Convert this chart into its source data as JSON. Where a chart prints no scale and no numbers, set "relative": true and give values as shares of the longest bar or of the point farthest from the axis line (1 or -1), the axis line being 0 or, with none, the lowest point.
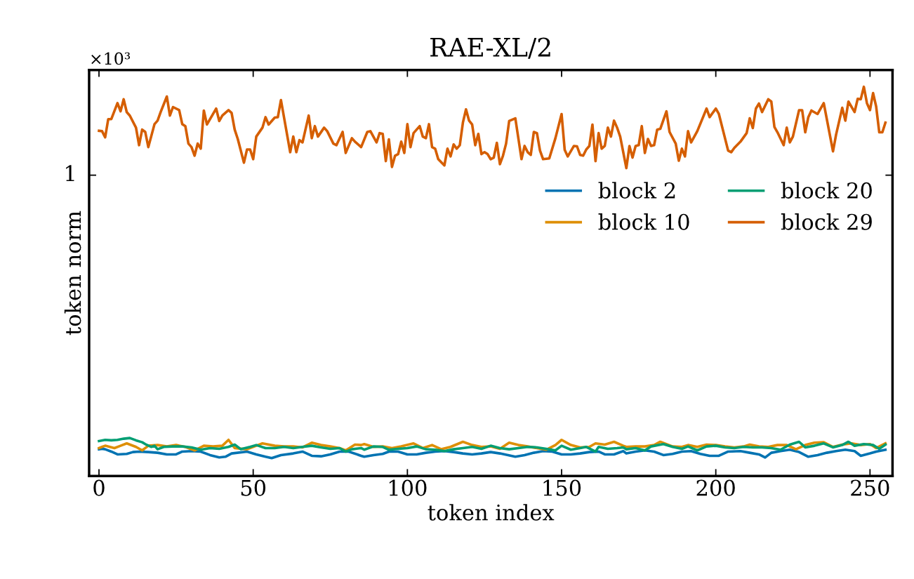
{
  "chart_data": {
    "type": "line",
    "title": "RAE-XL/2",
    "xlabel": "token index",
    "ylabel": "token norm",
    "relative": true,
    "annotations": [
      "×10³",
      "1"
    ],
    "xlim": [
      -3.2,
      257.3
    ],
    "xticks": [
      0,
      50,
      100,
      150,
      200,
      250
    ],
    "grid": false,
    "legend": "right",
    "line_style": "solid",
    "marker": "none",
    "series": [
      {
        "name": "block 2",
        "color": "#0173b2",
        "x": [
          0,
          1,
          2,
          4,
          6,
          9,
          11,
          13,
          16,
          19,
          22,
          25,
          27,
          30,
          33,
          36,
          39,
          41,
          43,
          48,
          51,
          54,
          56,
          59,
          63,
          66,
          69,
          72,
          75,
          78,
          81,
          85,
          86,
          89,
          92,
          94,
          97,
          100,
          103,
          106,
          109,
          112,
          115,
          118,
          121,
          124,
          127,
          130,
          135,
          138,
          141,
          144,
          147,
          150,
          153,
          156,
          159,
          162,
          164,
          167,
          170,
          171,
          174,
          177,
          180,
          183,
          186,
          189,
          192,
          195,
          198,
          201,
          204,
          208,
          211,
          214,
          216,
          218,
          221,
          224,
          227,
          230,
          233,
          236,
          239,
          242,
          245,
          247,
          250,
          252,
          255
        ],
        "values": [
          0.0686,
          0.0698,
          0.0686,
          0.0626,
          0.0554,
          0.0566,
          0.0614,
          0.0626,
          0.0614,
          0.0596,
          0.0554,
          0.0554,
          0.0626,
          0.0638,
          0.0626,
          0.0536,
          0.0475,
          0.0493,
          0.0578,
          0.0626,
          0.0554,
          0.0493,
          0.0457,
          0.0536,
          0.0578,
          0.0626,
          0.0517,
          0.0505,
          0.0554,
          0.0626,
          0.0626,
          0.0517,
          0.0493,
          0.0536,
          0.0566,
          0.0626,
          0.0626,
          0.0554,
          0.0554,
          0.0596,
          0.0626,
          0.0638,
          0.0614,
          0.0578,
          0.0554,
          0.0578,
          0.0614,
          0.0578,
          0.0493,
          0.0536,
          0.0596,
          0.0638,
          0.0626,
          0.0554,
          0.0554,
          0.0578,
          0.0614,
          0.0626,
          0.0554,
          0.0554,
          0.0638,
          0.0578,
          0.0626,
          0.0656,
          0.0626,
          0.0536,
          0.0566,
          0.0626,
          0.0638,
          0.0566,
          0.0517,
          0.0517,
          0.0626,
          0.0638,
          0.0596,
          0.0554,
          0.0475,
          0.0596,
          0.0638,
          0.0674,
          0.0614,
          0.0493,
          0.0536,
          0.0596,
          0.0638,
          0.0674,
          0.0638,
          0.0517,
          0.0578,
          0.0626,
          0.0674
        ]
      },
      {
        "name": "block 10",
        "color": "#de8f05",
        "x": [
          0,
          1,
          2,
          5,
          7,
          9,
          12,
          14,
          16,
          19,
          22,
          25,
          28,
          31,
          34,
          37,
          40,
          42,
          44,
          48,
          51,
          53,
          57,
          60,
          63,
          66,
          69,
          72,
          75,
          78,
          80,
          83,
          85,
          86,
          89,
          92,
          95,
          98,
          102,
          105,
          108,
          111,
          114,
          118,
          121,
          124,
          127,
          130,
          133,
          136,
          139,
          142,
          145,
          148,
          150,
          153,
          156,
          159,
          161,
          164,
          167,
          170,
          171,
          174,
          177,
          180,
          182,
          186,
          189,
          191,
          194,
          197,
          200,
          203,
          206,
          209,
          211,
          214,
          217,
          220,
          223,
          226,
          229,
          232,
          235,
          238,
          241,
          244,
          247,
          250,
          252,
          255
        ],
        "values": [
          0.0716,
          0.0746,
          0.0776,
          0.0716,
          0.0776,
          0.0836,
          0.0746,
          0.0656,
          0.0776,
          0.0794,
          0.0758,
          0.0794,
          0.0746,
          0.0656,
          0.0776,
          0.0758,
          0.0776,
          0.0927,
          0.0716,
          0.0686,
          0.0776,
          0.0836,
          0.0776,
          0.0758,
          0.0758,
          0.0734,
          0.0854,
          0.0794,
          0.0758,
          0.0716,
          0.0656,
          0.0806,
          0.0794,
          0.0818,
          0.0746,
          0.0758,
          0.0716,
          0.0758,
          0.0836,
          0.0716,
          0.0794,
          0.0686,
          0.0746,
          0.0878,
          0.0794,
          0.0746,
          0.0758,
          0.0698,
          0.0854,
          0.0794,
          0.0758,
          0.0716,
          0.0674,
          0.0794,
          0.0927,
          0.0794,
          0.0734,
          0.0746,
          0.0836,
          0.0806,
          0.0878,
          0.0776,
          0.0746,
          0.0758,
          0.0758,
          0.0794,
          0.0878,
          0.0758,
          0.0746,
          0.0794,
          0.0746,
          0.0806,
          0.0794,
          0.0758,
          0.0734,
          0.0758,
          0.0806,
          0.0758,
          0.0746,
          0.0794,
          0.0794,
          0.0686,
          0.0794,
          0.0854,
          0.0866,
          0.0746,
          0.0806,
          0.0836,
          0.0794,
          0.0818,
          0.0716,
          0.0836
        ]
      },
      {
        "name": "block 20",
        "color": "#029e73",
        "x": [
          0,
          2,
          4,
          6,
          8,
          10,
          12,
          14,
          15,
          17,
          18,
          19,
          21,
          24,
          27,
          30,
          33,
          36,
          39,
          42,
          44,
          46,
          49,
          51,
          54,
          57,
          60,
          63,
          66,
          69,
          72,
          75,
          78,
          80,
          82,
          85,
          86,
          89,
          92,
          94,
          97,
          100,
          103,
          106,
          109,
          112,
          115,
          118,
          121,
          124,
          127,
          130,
          133,
          136,
          139,
          142,
          145,
          148,
          150,
          153,
          156,
          158,
          161,
          162,
          165,
          168,
          170,
          171,
          174,
          177,
          179,
          183,
          186,
          189,
          191,
          194,
          197,
          200,
          203,
          206,
          209,
          212,
          215,
          218,
          221,
          224,
          227,
          229,
          232,
          235,
          238,
          241,
          243,
          245,
          248,
          251,
          253,
          255
        ],
        "values": [
          0.0897,
          0.0927,
          0.0915,
          0.0927,
          0.0957,
          0.0975,
          0.0915,
          0.0866,
          0.0818,
          0.0746,
          0.0776,
          0.0686,
          0.0746,
          0.0758,
          0.0758,
          0.0734,
          0.0674,
          0.0716,
          0.0698,
          0.0746,
          0.0806,
          0.0686,
          0.0746,
          0.0794,
          0.0716,
          0.0716,
          0.0746,
          0.0716,
          0.0746,
          0.0776,
          0.0734,
          0.0698,
          0.0716,
          0.0626,
          0.0686,
          0.0716,
          0.0674,
          0.0758,
          0.0746,
          0.0674,
          0.0698,
          0.0716,
          0.0758,
          0.0686,
          0.0674,
          0.0638,
          0.0686,
          0.0716,
          0.0746,
          0.0698,
          0.0776,
          0.0716,
          0.0686,
          0.0716,
          0.0746,
          0.0734,
          0.0698,
          0.0656,
          0.0776,
          0.0674,
          0.0716,
          0.0746,
          0.0626,
          0.0746,
          0.0698,
          0.0716,
          0.0734,
          0.0686,
          0.0716,
          0.0656,
          0.0758,
          0.0818,
          0.0746,
          0.0698,
          0.0758,
          0.0656,
          0.0758,
          0.0776,
          0.0734,
          0.0716,
          0.0746,
          0.0734,
          0.0734,
          0.0716,
          0.0674,
          0.0806,
          0.0878,
          0.0734,
          0.0776,
          0.0836,
          0.0734,
          0.0794,
          0.0878,
          0.0776,
          0.0818,
          0.0794,
          0.0698,
          0.0806
        ]
      },
      {
        "name": "block 29",
        "color": "#d55e00",
        "x": [
          0,
          1,
          2,
          3,
          4,
          6,
          7,
          8,
          9,
          10,
          12,
          13,
          14,
          15,
          16,
          18,
          19,
          20,
          22,
          23,
          24,
          26,
          27,
          28,
          29,
          30,
          31,
          32,
          33,
          34,
          35,
          38,
          39,
          40,
          42,
          43,
          44,
          45,
          47,
          48,
          49,
          50,
          51,
          53,
          54,
          55,
          57,
          58,
          59,
          62,
          63,
          64,
          65,
          66,
          68,
          69,
          70,
          71,
          73,
          74,
          76,
          77,
          79,
          80,
          82,
          83,
          85,
          87,
          88,
          90,
          91,
          92,
          93,
          94,
          95,
          96,
          97,
          98,
          99,
          100,
          101,
          102,
          104,
          105,
          106,
          107,
          108,
          109,
          110,
          112,
          113,
          114,
          115,
          116,
          117,
          118,
          119,
          120,
          121,
          122,
          123,
          124,
          125,
          126,
          127,
          128,
          129,
          130,
          131,
          132,
          133,
          135,
          137,
          138,
          139,
          140,
          141,
          142,
          143,
          144,
          146,
          148,
          149,
          150,
          151,
          152,
          154,
          155,
          156,
          157,
          158,
          159,
          160,
          161,
          162,
          163,
          164,
          165,
          166,
          167,
          168,
          169,
          171,
          172,
          173,
          174,
          175,
          176,
          177,
          178,
          179,
          180,
          181,
          182,
          184,
          185,
          187,
          188,
          189,
          190,
          191,
          192,
          194,
          197,
          198,
          200,
          201,
          204,
          205,
          206,
          208,
          210,
          211,
          212,
          213,
          214,
          215,
          217,
          218,
          219,
          220,
          222,
          223,
          224,
          225,
          227,
          228,
          229,
          230,
          231,
          233,
          235,
          238,
          239,
          241,
          242,
          243,
          245,
          246,
          247,
          248,
          249,
          250,
          251,
          252,
          253,
          254,
          255
        ],
        "values": [
          0.887,
          0.886,
          0.87,
          0.917,
          0.917,
          0.958,
          0.937,
          0.968,
          0.935,
          0.926,
          0.895,
          0.85,
          0.89,
          0.884,
          0.845,
          0.904,
          0.913,
          0.935,
          0.975,
          0.926,
          0.948,
          0.94,
          0.904,
          0.899,
          0.854,
          0.845,
          0.823,
          0.854,
          0.841,
          0.939,
          0.903,
          0.944,
          0.912,
          0.926,
          0.94,
          0.933,
          0.89,
          0.866,
          0.805,
          0.839,
          0.839,
          0.814,
          0.872,
          0.895,
          0.922,
          0.903,
          0.921,
          0.922,
          0.966,
          0.832,
          0.872,
          0.832,
          0.863,
          0.857,
          0.926,
          0.868,
          0.899,
          0.872,
          0.895,
          0.886,
          0.854,
          0.85,
          0.884,
          0.83,
          0.868,
          0.859,
          0.845,
          0.884,
          0.886,
          0.857,
          0.881,
          0.879,
          0.809,
          0.865,
          0.794,
          0.823,
          0.827,
          0.859,
          0.83,
          0.904,
          0.845,
          0.881,
          0.899,
          0.872,
          0.868,
          0.904,
          0.845,
          0.841,
          0.814,
          0.798,
          0.841,
          0.821,
          0.852,
          0.841,
          0.85,
          0.908,
          0.942,
          0.913,
          0.903,
          0.85,
          0.879,
          0.827,
          0.832,
          0.827,
          0.814,
          0.818,
          0.856,
          0.801,
          0.823,
          0.854,
          0.912,
          0.919,
          0.814,
          0.848,
          0.832,
          0.825,
          0.884,
          0.881,
          0.836,
          0.814,
          0.816,
          0.868,
          0.899,
          0.93,
          0.838,
          0.821,
          0.848,
          0.847,
          0.825,
          0.823,
          0.839,
          0.848,
          0.903,
          0.809,
          0.881,
          0.841,
          0.848,
          0.895,
          0.872,
          0.913,
          0.895,
          0.872,
          0.791,
          0.848,
          0.818,
          0.848,
          0.85,
          0.899,
          0.83,
          0.866,
          0.848,
          0.85,
          0.89,
          0.892,
          0.937,
          0.884,
          0.854,
          0.81,
          0.841,
          0.821,
          0.886,
          0.857,
          0.886,
          0.944,
          0.922,
          0.944,
          0.93,
          0.836,
          0.832,
          0.843,
          0.859,
          0.881,
          0.919,
          0.894,
          0.944,
          0.957,
          0.935,
          0.968,
          0.962,
          0.897,
          0.883,
          0.85,
          0.895,
          0.857,
          0.872,
          0.94,
          0.94,
          0.883,
          0.922,
          0.939,
          0.93,
          0.958,
          0.834,
          0.877,
          0.946,
          0.913,
          0.962,
          0.935,
          0.969,
          0.968,
          1.0,
          0.958,
          0.94,
          0.984,
          0.949,
          0.883,
          0.883,
          0.908
        ]
      }
    ]
  }
}
